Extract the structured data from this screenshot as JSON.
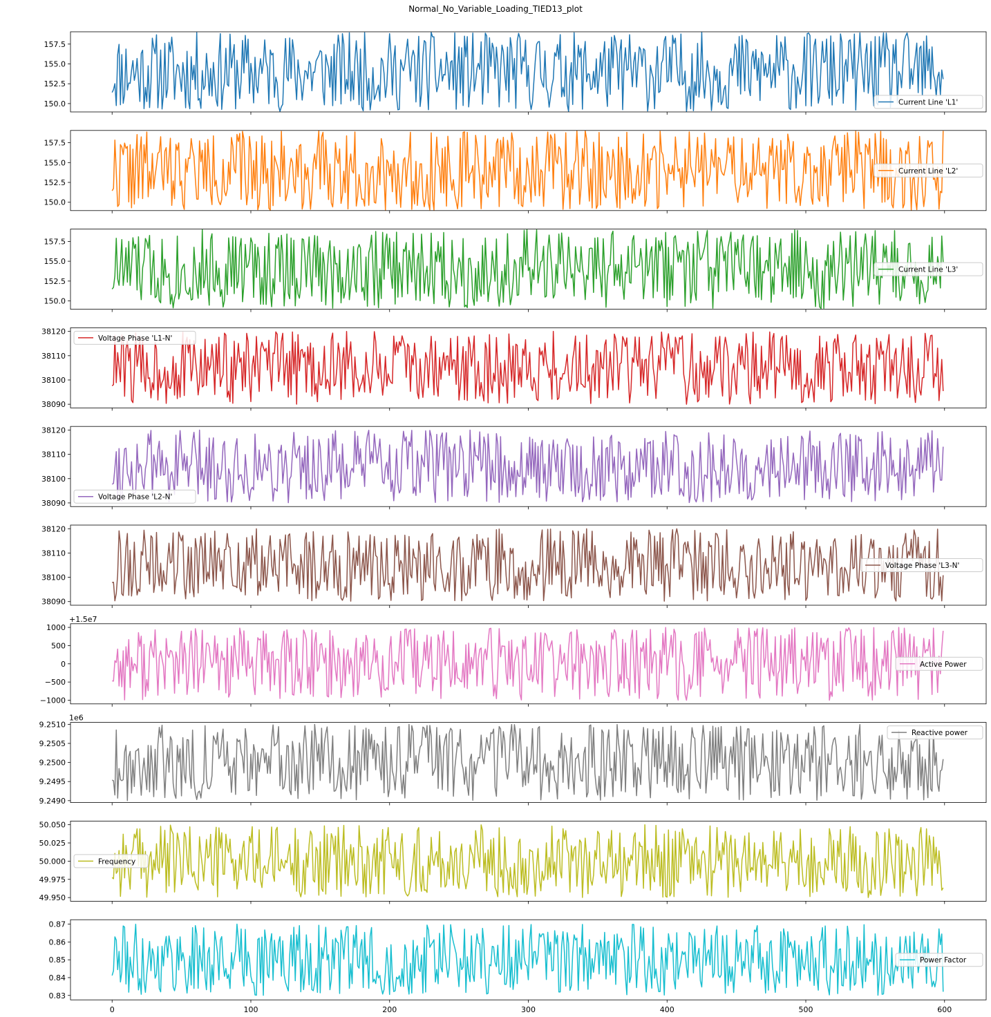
{
  "figure": {
    "title": "Normal_No_Variable_Loading_TIED13_plot"
  },
  "chart_data": [
    {
      "type": "line",
      "series": [
        {
          "name": "Current Line 'L1'",
          "pattern": "random-within-range",
          "points": 600
        }
      ],
      "color": "#1f77b4",
      "ylim": [
        148.95,
        159.05
      ],
      "yticks": [
        150.0,
        152.5,
        155.0,
        157.5
      ],
      "ytick_labels": [
        "150.0",
        "152.5",
        "155.0",
        "157.5"
      ],
      "value_range": [
        149,
        159
      ],
      "legend_loc": "lower right",
      "offset_text": "",
      "seed": 11
    },
    {
      "type": "line",
      "series": [
        {
          "name": "Current Line 'L2'",
          "pattern": "random-within-range",
          "points": 600
        }
      ],
      "color": "#ff7f0e",
      "ylim": [
        148.95,
        159.05
      ],
      "yticks": [
        150.0,
        152.5,
        155.0,
        157.5
      ],
      "ytick_labels": [
        "150.0",
        "152.5",
        "155.0",
        "157.5"
      ],
      "value_range": [
        149,
        159
      ],
      "legend_loc": "center right",
      "offset_text": "",
      "seed": 22
    },
    {
      "type": "line",
      "series": [
        {
          "name": "Current Line 'L3'",
          "pattern": "random-within-range",
          "points": 600
        }
      ],
      "color": "#2ca02c",
      "ylim": [
        148.95,
        159.05
      ],
      "yticks": [
        150.0,
        152.5,
        155.0,
        157.5
      ],
      "ytick_labels": [
        "150.0",
        "152.5",
        "155.0",
        "157.5"
      ],
      "value_range": [
        149,
        159
      ],
      "legend_loc": "center right",
      "offset_text": "",
      "seed": 33
    },
    {
      "type": "line",
      "series": [
        {
          "name": "Voltage Phase 'L1-N'",
          "pattern": "random-within-range",
          "points": 600
        }
      ],
      "color": "#d62728",
      "ylim": [
        38088.5,
        38121.5
      ],
      "yticks": [
        38090,
        38100,
        38110,
        38120
      ],
      "ytick_labels": [
        "38090",
        "38100",
        "38110",
        "38120"
      ],
      "value_range": [
        38090,
        38120
      ],
      "legend_loc": "upper left",
      "offset_text": "",
      "seed": 44
    },
    {
      "type": "line",
      "series": [
        {
          "name": "Voltage Phase 'L2-N'",
          "pattern": "random-within-range",
          "points": 600
        }
      ],
      "color": "#9467bd",
      "ylim": [
        38088.5,
        38121.5
      ],
      "yticks": [
        38090,
        38100,
        38110,
        38120
      ],
      "ytick_labels": [
        "38090",
        "38100",
        "38110",
        "38120"
      ],
      "value_range": [
        38090,
        38120
      ],
      "legend_loc": "lower left",
      "offset_text": "",
      "seed": 55
    },
    {
      "type": "line",
      "series": [
        {
          "name": "Voltage Phase 'L3-N'",
          "pattern": "random-within-range",
          "points": 600
        }
      ],
      "color": "#8c564b",
      "ylim": [
        38088.5,
        38121.5
      ],
      "yticks": [
        38090,
        38100,
        38110,
        38120
      ],
      "ytick_labels": [
        "38090",
        "38100",
        "38110",
        "38120"
      ],
      "value_range": [
        38090,
        38120
      ],
      "legend_loc": "center right",
      "offset_text": "",
      "seed": 66
    },
    {
      "type": "line",
      "series": [
        {
          "name": "Active Power",
          "pattern": "random-within-range",
          "points": 600
        }
      ],
      "color": "#e377c2",
      "ylim": [
        -1100,
        1100
      ],
      "yticks": [
        -1000,
        -500,
        0,
        500,
        1000
      ],
      "ytick_labels": [
        "−1000",
        "−500",
        "0",
        "500",
        "1000"
      ],
      "value_range": [
        -1000,
        1000
      ],
      "legend_loc": "center right",
      "offset_text": "+1.5e7",
      "seed": 77
    },
    {
      "type": "line",
      "series": [
        {
          "name": "Reactive power",
          "pattern": "random-within-range",
          "points": 600
        }
      ],
      "color": "#7f7f7f",
      "ylim": [
        9.24895,
        9.25105
      ],
      "yticks": [
        9.249,
        9.2495,
        9.25,
        9.2505,
        9.251
      ],
      "ytick_labels": [
        "9.2490",
        "9.2495",
        "9.2500",
        "9.2505",
        "9.2510"
      ],
      "value_range": [
        9.249,
        9.251
      ],
      "legend_loc": "upper right",
      "offset_text": "1e6",
      "seed": 88
    },
    {
      "type": "line",
      "series": [
        {
          "name": "Frequency",
          "pattern": "random-within-range",
          "points": 600
        }
      ],
      "color": "#bcbd22",
      "ylim": [
        49.945,
        50.055
      ],
      "yticks": [
        49.95,
        49.975,
        50.0,
        50.025,
        50.05
      ],
      "ytick_labels": [
        "49.950",
        "49.975",
        "50.000",
        "50.025",
        "50.050"
      ],
      "value_range": [
        49.95,
        50.05
      ],
      "legend_loc": "center left",
      "offset_text": "",
      "seed": 99
    },
    {
      "type": "line",
      "series": [
        {
          "name": "Power Factor",
          "pattern": "random-within-range",
          "points": 600
        }
      ],
      "color": "#17becf",
      "ylim": [
        0.8275,
        0.8725
      ],
      "yticks": [
        0.83,
        0.84,
        0.85,
        0.86,
        0.87
      ],
      "ytick_labels": [
        "0.83",
        "0.84",
        "0.85",
        "0.86",
        "0.87"
      ],
      "value_range": [
        0.83,
        0.87
      ],
      "legend_loc": "center right",
      "offset_text": "",
      "seed": 111
    }
  ],
  "x_axis": {
    "xlim": [
      -30,
      630
    ],
    "ticks": [
      0,
      100,
      200,
      300,
      400,
      500,
      600
    ],
    "tick_labels": [
      "0",
      "100",
      "200",
      "300",
      "400",
      "500",
      "600"
    ]
  }
}
